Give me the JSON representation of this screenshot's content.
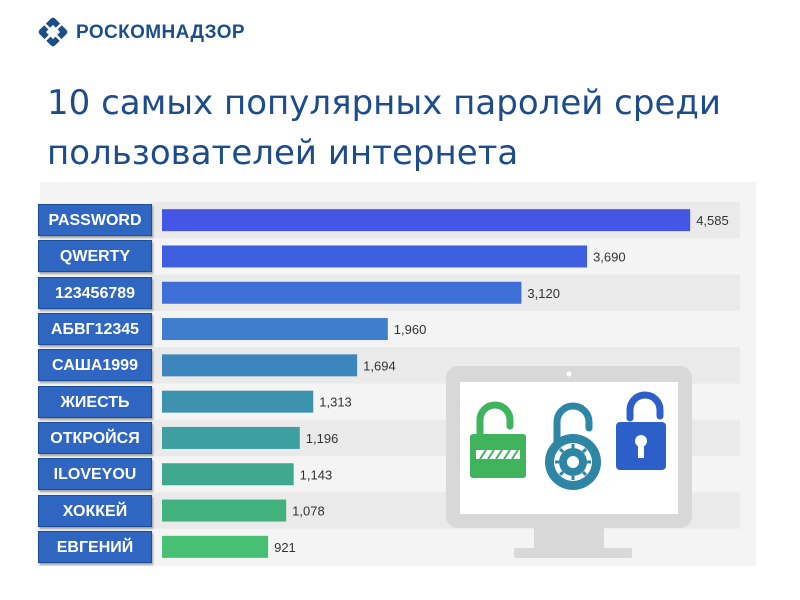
{
  "header": {
    "logo_text": "РОСКОМНАДЗОР",
    "logo_icon": "roskomnadzor-diamond-icon"
  },
  "title": "10 самых популярных паролей среди пользователей интернета",
  "illustration": {
    "icons": [
      "computer-monitor-icon",
      "open-padlock-icon",
      "dial-padlock-icon",
      "open-padlock-icon"
    ],
    "colors": {
      "monitor": "#d6d6d6",
      "lock_green": "#3fb45c",
      "lock_teal": "#2e86a4",
      "lock_blue": "#2d5fc8"
    }
  },
  "chart_data": {
    "type": "bar",
    "orientation": "horizontal",
    "categories": [
      "PASSWORD",
      "QWERTY",
      "123456789",
      "АБВГ12345",
      "САША1999",
      "ЖИЕСТЬ",
      "ОТКРОЙСЯ",
      "ILOVEYOU",
      "ХОККЕЙ",
      "ЕВГЕНИЙ"
    ],
    "values": [
      4585,
      3690,
      3120,
      1960,
      1694,
      1313,
      1196,
      1143,
      1078,
      921
    ],
    "value_labels": [
      "4,585",
      "3,690",
      "3,120",
      "1,960",
      "1,694",
      "1,313",
      "1,196",
      "1,143",
      "1,078",
      "921"
    ],
    "xlim": [
      0,
      5000
    ],
    "grid": false,
    "bar_colors": [
      "#4356e6",
      "#3d5fe0",
      "#3e6fd6",
      "#3f7dcd",
      "#3c86bd",
      "#3d93ad",
      "#3e9fa0",
      "#3fa88f",
      "#41b27d",
      "#47c073"
    ],
    "label_color": "#2f66c2"
  }
}
